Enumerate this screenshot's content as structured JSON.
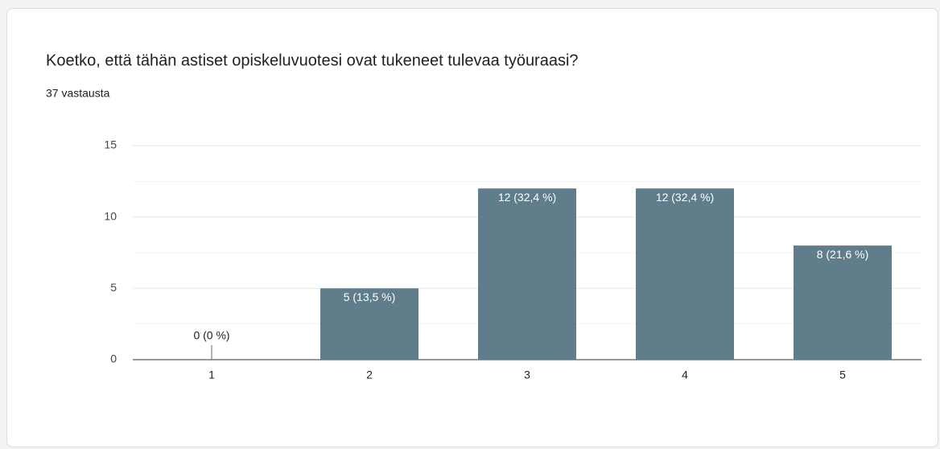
{
  "chart_data": {
    "type": "bar",
    "title": "Koetko, että tähän astiset opiskeluvuotesi ovat tukeneet tulevaa työuraasi?",
    "subtitle": "37 vastausta",
    "categories": [
      "1",
      "2",
      "3",
      "4",
      "5"
    ],
    "values": [
      0,
      5,
      12,
      12,
      8
    ],
    "value_labels": [
      "0 (0 %)",
      "5 (13,5 %)",
      "12 (32,4 %)",
      "12 (32,4 %)",
      "8 (21,6 %)"
    ],
    "color": "#607d8b",
    "ylim": [
      0,
      15
    ],
    "yticks": [
      0,
      5,
      10,
      15
    ],
    "grid": true
  }
}
